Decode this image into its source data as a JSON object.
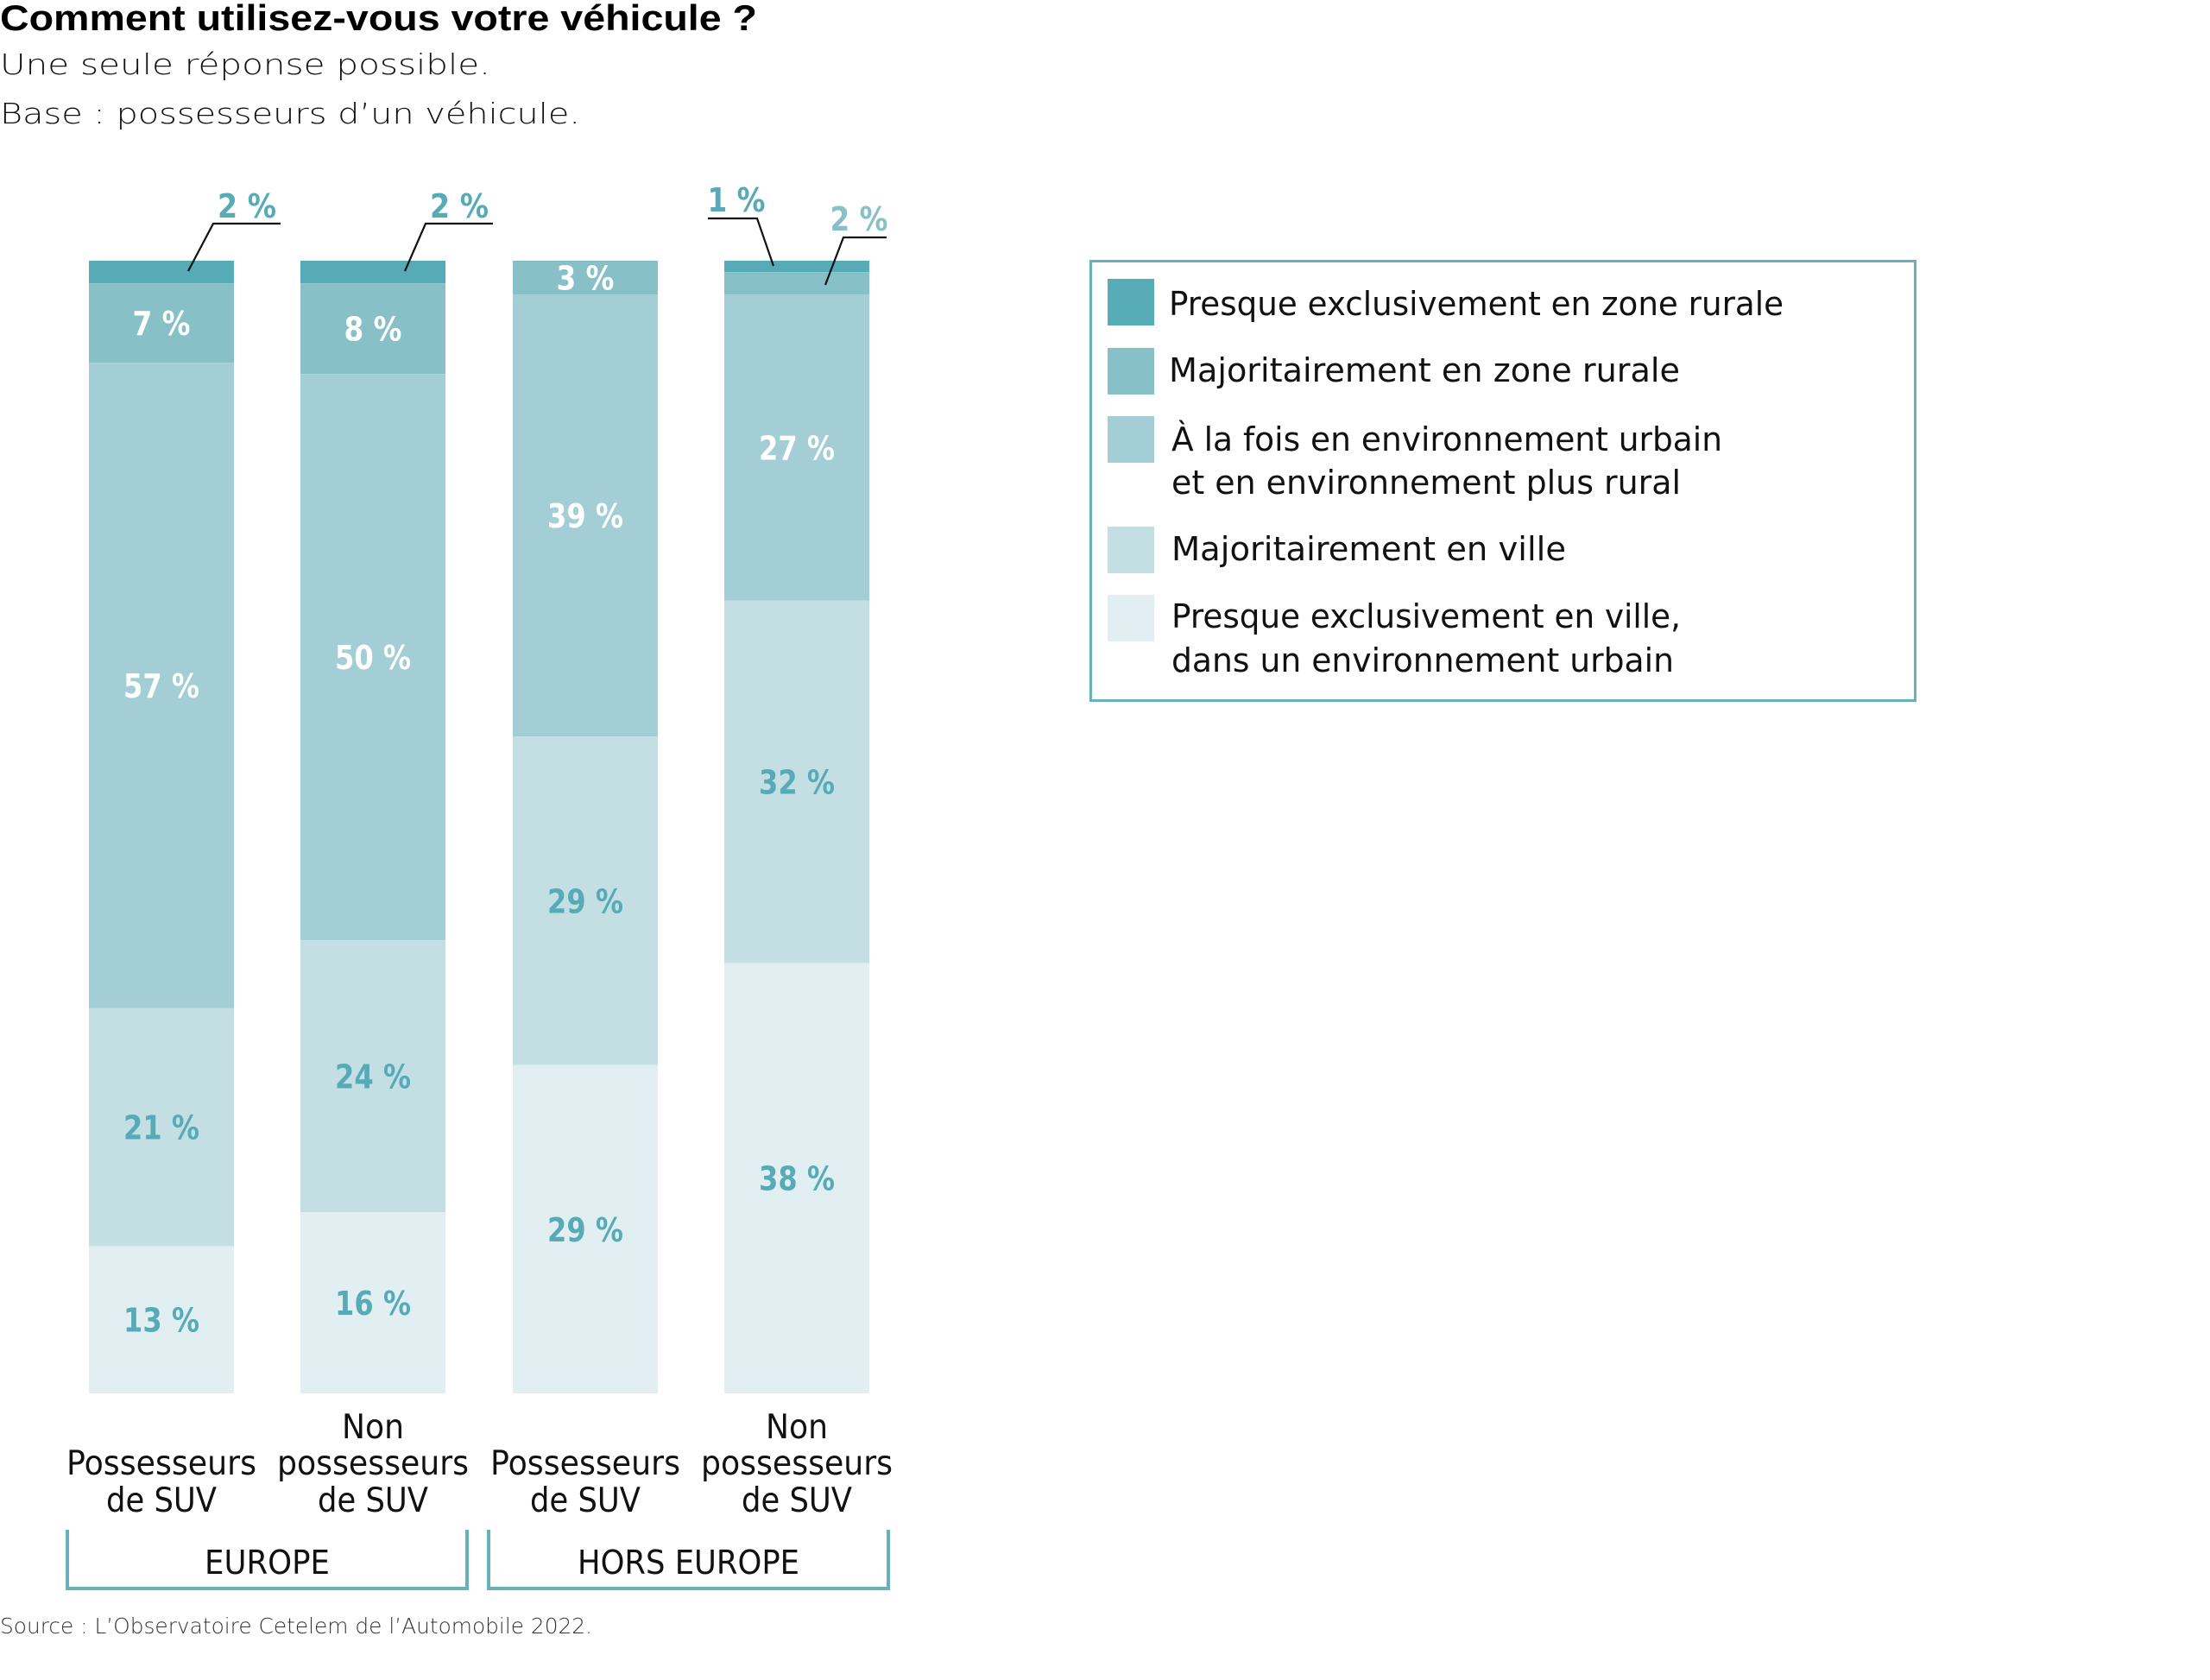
{
  "header": {
    "title": "Comment utilisez-vous votre véhicule ?",
    "subtitle_lines": [
      "Une seule réponse possible.",
      "Base : possesseurs d’un véhicule."
    ]
  },
  "source": "Source : L’Observatoire Cetelem de l’Automobile 2022.",
  "colors": {
    "level1": "#56abb7",
    "level2": "#88c0c8",
    "level3": "#a4ced5",
    "level4": "#c4dfe3",
    "level5": "#e2eff2",
    "frame": "#68b1bb",
    "label_on_light": "#56abb7",
    "label_on_dark": "#ffffff",
    "leader": "#111111"
  },
  "chart_data": {
    "type": "bar",
    "stacked": true,
    "orientation": "vertical",
    "title": "Comment utilisez-vous votre véhicule ?",
    "xlabel": "",
    "ylabel": "",
    "ylim": [
      0,
      100
    ],
    "unit": "%",
    "grid": false,
    "legend_position": "right",
    "categories": [
      [
        "Possesseurs",
        "de SUV"
      ],
      [
        "Non",
        "possesseurs",
        "de SUV"
      ],
      [
        "Possesseurs",
        "de SUV"
      ],
      [
        "Non",
        "possesseurs",
        "de SUV"
      ]
    ],
    "groups": [
      {
        "label": "EUROPE",
        "categories": [
          0,
          1
        ]
      },
      {
        "label": "HORS EUROPE",
        "categories": [
          2,
          3
        ]
      }
    ],
    "series": [
      {
        "name": "Presque exclusivement en zone rurale",
        "legend_lines": [
          "Presque exclusivement en zone rurale"
        ],
        "values": [
          2,
          2,
          0,
          1
        ],
        "labels": [
          "2 %",
          "2 %",
          "",
          "1 %"
        ]
      },
      {
        "name": "Majoritairement en zone rurale",
        "legend_lines": [
          "Majoritairement en zone rurale"
        ],
        "values": [
          7,
          8,
          3,
          2
        ],
        "labels": [
          "7 %",
          "8 %",
          "3 %",
          "2 %"
        ]
      },
      {
        "name": "À la fois en environnement urbain et en environnement plus rural",
        "legend_lines": [
          "À la fois en environnement urbain",
          "et en environnement plus rural"
        ],
        "values": [
          57,
          50,
          39,
          27
        ],
        "labels": [
          "57 %",
          "50 %",
          "39 %",
          "27 %"
        ]
      },
      {
        "name": "Majoritairement en ville",
        "legend_lines": [
          "Majoritairement en ville"
        ],
        "values": [
          21,
          24,
          29,
          32
        ],
        "labels": [
          "21 %",
          "24 %",
          "29 %",
          "32 %"
        ]
      },
      {
        "name": "Presque exclusivement en ville, dans un environnement urbain",
        "legend_lines": [
          "Presque exclusivement en ville,",
          "dans un environnement urbain"
        ],
        "values": [
          13,
          16,
          29,
          38
        ],
        "labels": [
          "13 %",
          "16 %",
          "29 %",
          "38 %"
        ]
      }
    ]
  }
}
